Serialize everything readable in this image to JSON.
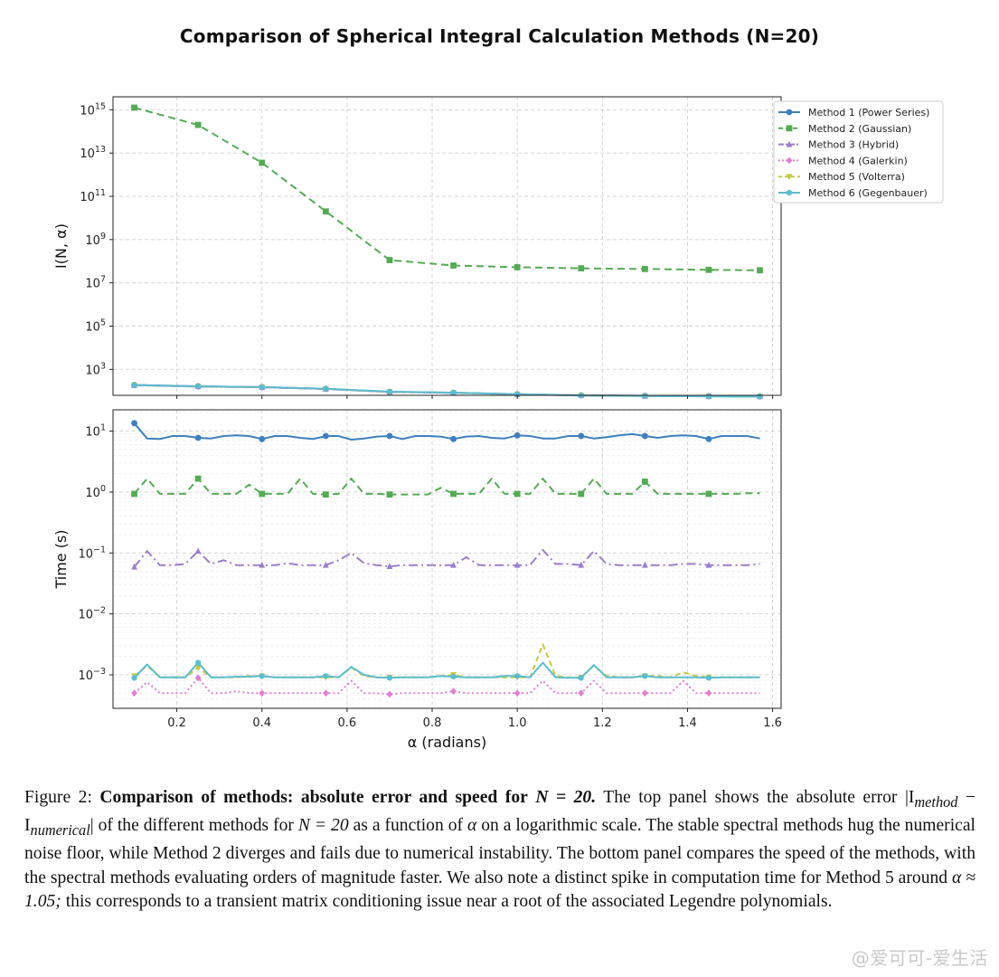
{
  "figure": {
    "suptitle": "Comparison of Spherical Integral Calculation Methods (N=20)",
    "caption": {
      "label": "Figure 2:",
      "bold": "Comparison of methods: absolute error and speed for",
      "bold_math": "N = 20.",
      "rest1": "The top panel shows the absolute error |I",
      "sub_method": "method",
      "minus": " − I",
      "sub_numerical": "numerical",
      "rest2": "| of the different methods for",
      "nmath": "N = 20",
      "rest3": "as a function of",
      "alpha": "α",
      "rest4": "on a logarithmic scale. The stable spectral methods hug the numerical noise floor, while Method 2 diverges and fails due to numerical instability. The bottom panel compares the speed of the methods, with the spectral methods evaluating orders of magnitude faster. We also note a distinct spike in computation time for Method 5 around",
      "alpha_approx": "α ≈ 1.05;",
      "rest5": "this corresponds to a transient matrix conditioning issue near a root of the associated Legendre polynomials."
    },
    "watermark": "@爱可可-爱生活"
  },
  "chart_data": [
    {
      "type": "line",
      "panel": "top",
      "yscale": "log",
      "xlabel": "",
      "ylabel": "I(N, α)",
      "xlim": [
        0.05,
        1.62
      ],
      "ylim_log10": [
        1.8,
        15.6
      ],
      "yticks": [
        {
          "base": "10",
          "exp": "3",
          "v": 3
        },
        {
          "base": "10",
          "exp": "5",
          "v": 5
        },
        {
          "base": "10",
          "exp": "7",
          "v": 7
        },
        {
          "base": "10",
          "exp": "9",
          "v": 9
        },
        {
          "base": "10",
          "exp": "11",
          "v": 11
        },
        {
          "base": "10",
          "exp": "13",
          "v": 13
        },
        {
          "base": "10",
          "exp": "15",
          "v": 15
        }
      ],
      "x": [
        0.1,
        0.25,
        0.4,
        0.55,
        0.7,
        0.85,
        1.0,
        1.15,
        1.3,
        1.45,
        1.57
      ],
      "series": [
        {
          "name": "Method 1 (Power Series)",
          "color": "#3f7fbf",
          "dash": "",
          "marker": "circle",
          "log10_values": [
            2.28,
            2.22,
            2.18,
            2.1,
            1.96,
            1.92,
            1.85,
            1.8,
            1.78,
            1.76,
            1.75
          ]
        },
        {
          "name": "Method 2 (Gaussian)",
          "color": "#55aa55",
          "dash": "8,5",
          "marker": "square",
          "log10_values": [
            15.1,
            14.3,
            12.55,
            10.3,
            8.05,
            7.8,
            7.72,
            7.67,
            7.64,
            7.6,
            7.58
          ]
        },
        {
          "name": "Method 3 (Hybrid)",
          "color": "#9b7ecb",
          "dash": "10,4,2,4",
          "marker": "triangle",
          "log10_values": [
            2.26,
            2.21,
            2.17,
            2.09,
            1.96,
            1.91,
            1.85,
            1.8,
            1.77,
            1.76,
            1.75
          ]
        },
        {
          "name": "Method 4 (Galerkin)",
          "color": "#e07fcf",
          "dash": "2,3",
          "marker": "diamond",
          "log10_values": [
            2.27,
            2.2,
            2.17,
            2.1,
            1.96,
            1.92,
            1.84,
            1.8,
            1.78,
            1.76,
            1.75
          ]
        },
        {
          "name": "Method 5 (Volterra)",
          "color": "#c8c840",
          "dash": "6,4",
          "marker": "triangle-down",
          "log10_values": [
            2.27,
            2.21,
            2.18,
            2.1,
            1.96,
            1.92,
            1.85,
            1.8,
            1.77,
            1.76,
            1.75
          ]
        },
        {
          "name": "Method 6 (Gegenbauer)",
          "color": "#5cbcd0",
          "dash": "",
          "marker": "hexagon",
          "log10_values": [
            2.27,
            2.21,
            2.18,
            2.1,
            1.97,
            1.92,
            1.85,
            1.79,
            1.77,
            1.75,
            1.75
          ]
        }
      ],
      "legend": "upper-right-outside"
    },
    {
      "type": "line",
      "panel": "bottom",
      "yscale": "log",
      "xlabel": "α (radians)",
      "ylabel": "Time (s)",
      "xlim": [
        0.05,
        1.62
      ],
      "ylim_log10": [
        -3.55,
        1.35
      ],
      "yticks": [
        {
          "base": "10",
          "exp": "1",
          "v": 1
        },
        {
          "base": "10",
          "exp": "0",
          "v": 0
        },
        {
          "base": "10",
          "exp": "−1",
          "v": -1
        },
        {
          "base": "10",
          "exp": "−2",
          "v": -2
        },
        {
          "base": "10",
          "exp": "−3",
          "v": -3
        }
      ],
      "xticks": [
        "0.2",
        "0.4",
        "0.6",
        "0.8",
        "1.0",
        "1.2",
        "1.4",
        "1.6"
      ],
      "xtick_values": [
        0.2,
        0.4,
        0.6,
        0.8,
        1.0,
        1.2,
        1.4,
        1.6
      ],
      "x": [
        0.1,
        0.13,
        0.16,
        0.19,
        0.22,
        0.25,
        0.28,
        0.31,
        0.34,
        0.37,
        0.4,
        0.43,
        0.46,
        0.49,
        0.52,
        0.55,
        0.58,
        0.61,
        0.64,
        0.67,
        0.7,
        0.73,
        0.76,
        0.79,
        0.82,
        0.85,
        0.88,
        0.91,
        0.94,
        0.97,
        1.0,
        1.03,
        1.06,
        1.09,
        1.12,
        1.15,
        1.18,
        1.21,
        1.24,
        1.27,
        1.3,
        1.33,
        1.36,
        1.39,
        1.42,
        1.45,
        1.48,
        1.51,
        1.54,
        1.57
      ],
      "marker_indices": [
        0,
        5,
        10,
        15,
        20,
        25,
        30,
        35,
        40,
        45
      ],
      "series": [
        {
          "name": "Method 1 (Power Series)",
          "color": "#3f7fbf",
          "dash": "",
          "marker": "circle",
          "log10_values": [
            1.13,
            0.88,
            0.87,
            0.92,
            0.92,
            0.89,
            0.88,
            0.92,
            0.93,
            0.92,
            0.87,
            0.92,
            0.92,
            0.89,
            0.87,
            0.92,
            0.92,
            0.86,
            0.88,
            0.91,
            0.92,
            0.87,
            0.92,
            0.92,
            0.91,
            0.87,
            0.91,
            0.92,
            0.89,
            0.88,
            0.93,
            0.92,
            0.88,
            0.88,
            0.92,
            0.92,
            0.88,
            0.9,
            0.93,
            0.95,
            0.92,
            0.89,
            0.92,
            0.93,
            0.92,
            0.87,
            0.92,
            0.92,
            0.92,
            0.88
          ]
        },
        {
          "name": "Method 2 (Gaussian)",
          "color": "#55aa55",
          "dash": "8,5",
          "marker": "square",
          "log10_values": [
            -0.03,
            0.22,
            -0.03,
            -0.03,
            -0.03,
            0.22,
            -0.03,
            -0.03,
            -0.03,
            0.12,
            -0.03,
            -0.03,
            -0.03,
            0.22,
            -0.03,
            -0.04,
            -0.03,
            0.22,
            -0.03,
            -0.03,
            -0.04,
            -0.04,
            -0.04,
            -0.04,
            0.07,
            -0.03,
            -0.03,
            -0.03,
            0.22,
            -0.03,
            -0.03,
            -0.03,
            0.22,
            -0.03,
            -0.03,
            -0.03,
            0.22,
            -0.03,
            -0.03,
            -0.03,
            0.17,
            -0.03,
            -0.03,
            -0.03,
            -0.03,
            -0.03,
            -0.03,
            -0.03,
            -0.02,
            -0.02
          ]
        },
        {
          "name": "Method 3 (Hybrid)",
          "color": "#9b7ecb",
          "dash": "10,4,2,4",
          "marker": "triangle",
          "log10_values": [
            -1.23,
            -0.97,
            -1.2,
            -1.2,
            -1.18,
            -0.97,
            -1.18,
            -1.12,
            -1.2,
            -1.2,
            -1.2,
            -1.2,
            -1.17,
            -1.2,
            -1.2,
            -1.2,
            -1.12,
            -1.0,
            -1.17,
            -1.2,
            -1.22,
            -1.2,
            -1.2,
            -1.2,
            -1.2,
            -1.2,
            -1.07,
            -1.2,
            -1.2,
            -1.2,
            -1.2,
            -1.2,
            -0.95,
            -1.18,
            -1.18,
            -1.2,
            -0.97,
            -1.18,
            -1.2,
            -1.2,
            -1.2,
            -1.2,
            -1.2,
            -1.18,
            -1.18,
            -1.2,
            -1.2,
            -1.2,
            -1.2,
            -1.18
          ]
        },
        {
          "name": "Method 4 (Galerkin)",
          "color": "#e07fcf",
          "dash": "2,3",
          "marker": "diamond",
          "log10_values": [
            -3.3,
            -3.12,
            -3.3,
            -3.3,
            -3.3,
            -3.05,
            -3.3,
            -3.3,
            -3.27,
            -3.3,
            -3.3,
            -3.3,
            -3.3,
            -3.3,
            -3.3,
            -3.3,
            -3.3,
            -3.1,
            -3.3,
            -3.3,
            -3.32,
            -3.3,
            -3.3,
            -3.3,
            -3.3,
            -3.27,
            -3.3,
            -3.3,
            -3.3,
            -3.3,
            -3.3,
            -3.3,
            -3.1,
            -3.3,
            -3.3,
            -3.3,
            -3.1,
            -3.3,
            -3.3,
            -3.3,
            -3.3,
            -3.3,
            -3.3,
            -3.1,
            -3.3,
            -3.3,
            -3.3,
            -3.3,
            -3.3,
            -3.3
          ]
        },
        {
          "name": "Method 5 (Volterra)",
          "color": "#c8c840",
          "dash": "6,4",
          "marker": "triangle-down",
          "log10_values": [
            -3.02,
            -2.85,
            -3.04,
            -3.04,
            -3.04,
            -2.88,
            -3.04,
            -3.04,
            -3.04,
            -3.02,
            -3.02,
            -3.04,
            -3.04,
            -3.04,
            -3.04,
            -3.04,
            -3.04,
            -2.88,
            -3.02,
            -3.04,
            -3.04,
            -3.04,
            -3.04,
            -3.04,
            -3.02,
            -3.0,
            -3.04,
            -3.04,
            -3.04,
            -3.04,
            -3.04,
            -3.04,
            -2.5,
            -3.02,
            -3.04,
            -3.04,
            -2.85,
            -3.02,
            -3.04,
            -3.04,
            -3.02,
            -3.02,
            -3.04,
            -2.96,
            -3.02,
            -3.04,
            -3.04,
            -3.04,
            -3.04,
            -3.04
          ]
        },
        {
          "name": "Method 6 (Gegenbauer)",
          "color": "#5cbcd0",
          "dash": "",
          "marker": "hexagon",
          "log10_values": [
            -3.05,
            -2.83,
            -3.04,
            -3.04,
            -3.04,
            -2.8,
            -3.04,
            -3.04,
            -3.03,
            -3.03,
            -3.02,
            -3.04,
            -3.04,
            -3.04,
            -3.04,
            -3.02,
            -3.04,
            -2.87,
            -3.0,
            -3.04,
            -3.05,
            -3.04,
            -3.04,
            -3.04,
            -3.02,
            -3.03,
            -3.04,
            -3.04,
            -3.04,
            -3.02,
            -3.02,
            -3.04,
            -2.8,
            -3.04,
            -3.05,
            -3.05,
            -2.84,
            -3.04,
            -3.04,
            -3.04,
            -3.02,
            -3.04,
            -3.04,
            -3.04,
            -3.04,
            -3.05,
            -3.04,
            -3.04,
            -3.04,
            -3.04
          ]
        }
      ]
    }
  ]
}
